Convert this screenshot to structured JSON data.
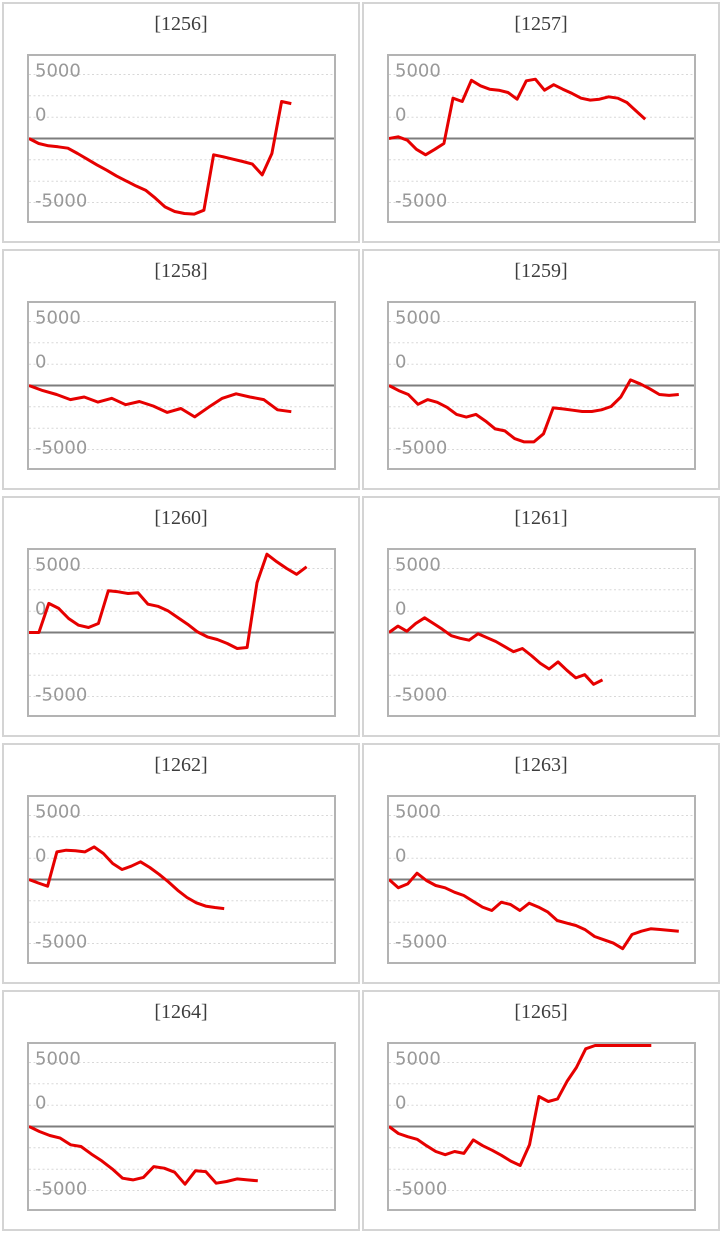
{
  "colors": {
    "background": "#ffffff",
    "series": "#e60000",
    "zero_line": "#7d7d7d",
    "gridline": "#d8d8d8",
    "plot_border": "#b3b3b3",
    "card_border": "#d4d4d4",
    "tick_label": "#999999",
    "title_text": "#3d3d3d"
  },
  "chart_data": {
    "type": "line",
    "layout": "grid of 10 sparkline-style slump graphs, 2 columns x 5 rows",
    "axis": {
      "tick_labels": [
        "5000",
        "0",
        "-5000"
      ],
      "ticks": [
        {
          "label": "5000",
          "value": 5000,
          "label_baseline_offset": 2
        },
        {
          "label": "0",
          "value": 0,
          "label_baseline_offset": -18
        },
        {
          "label": "-5000",
          "value": -5000,
          "label_baseline_offset": 4
        }
      ],
      "ylim": [
        -6450,
        6450
      ],
      "gridline_step": 1667,
      "grid": "dotted horizontal lines, solid darker line at 0",
      "legend": "none",
      "x_axis": "hidden (evenly spaced samples from left edge)"
    },
    "charts": [
      {
        "title": "[1256]",
        "machine": "1256",
        "line_end_fraction": 0.86,
        "values": [
          0,
          -390,
          -570,
          -650,
          -760,
          -1170,
          -1620,
          -2060,
          -2480,
          -2920,
          -3310,
          -3700,
          -4040,
          -4660,
          -5340,
          -5700,
          -5860,
          -5910,
          -5600,
          -1270,
          -1430,
          -1620,
          -1800,
          -2000,
          -2840,
          -1170,
          2890,
          2730
        ]
      },
      {
        "title": "[1257]",
        "machine": "1257",
        "line_end_fraction": 0.84,
        "values": [
          0,
          130,
          -130,
          -840,
          -1270,
          -840,
          -390,
          3150,
          2890,
          4550,
          4120,
          3850,
          3770,
          3590,
          3070,
          4510,
          4630,
          3770,
          4200,
          3850,
          3520,
          3150,
          3000,
          3070,
          3260,
          3150,
          2810,
          2160,
          1510
        ]
      },
      {
        "title": "[1258]",
        "machine": "1258",
        "line_end_fraction": 0.86,
        "values": [
          0,
          -400,
          -700,
          -1100,
          -900,
          -1300,
          -1000,
          -1500,
          -1250,
          -1600,
          -2100,
          -1800,
          -2450,
          -1700,
          -1000,
          -650,
          -900,
          -1100,
          -1900,
          -2050
        ]
      },
      {
        "title": "[1259]",
        "machine": "1259",
        "line_end_fraction": 0.95,
        "values": [
          0,
          -400,
          -700,
          -1470,
          -1100,
          -1310,
          -1700,
          -2260,
          -2470,
          -2260,
          -2780,
          -3390,
          -3550,
          -4150,
          -4410,
          -4410,
          -3770,
          -1750,
          -1830,
          -1930,
          -2030,
          -2030,
          -1900,
          -1640,
          -900,
          440,
          130,
          -260,
          -700,
          -770,
          -700
        ]
      },
      {
        "title": "[1260]",
        "machine": "1260",
        "line_end_fraction": 0.91,
        "values": [
          0,
          0,
          2270,
          1880,
          1090,
          570,
          390,
          700,
          3260,
          3180,
          3050,
          3100,
          2210,
          2050,
          1700,
          1170,
          650,
          50,
          -340,
          -550,
          -860,
          -1250,
          -1170,
          3880,
          6120,
          5520,
          5000,
          4550,
          5130
        ]
      },
      {
        "title": "[1261]",
        "machine": "1261",
        "line_end_fraction": 0.7,
        "values": [
          0,
          500,
          100,
          700,
          1150,
          700,
          250,
          -250,
          -450,
          -600,
          -100,
          -400,
          -700,
          -1100,
          -1500,
          -1250,
          -1800,
          -2400,
          -2850,
          -2300,
          -2950,
          -3550,
          -3300,
          -4050,
          -3700
        ]
      },
      {
        "title": "[1262]",
        "machine": "1262",
        "line_end_fraction": 0.64,
        "values": [
          0,
          -270,
          -520,
          2160,
          2290,
          2240,
          2160,
          2550,
          2030,
          1250,
          780,
          1040,
          1380,
          940,
          410,
          -190,
          -840,
          -1410,
          -1820,
          -2080,
          -2190,
          -2270
        ]
      },
      {
        "title": "[1263]",
        "machine": "1263",
        "line_end_fraction": 0.95,
        "values": [
          0,
          -650,
          -340,
          490,
          -80,
          -470,
          -650,
          -990,
          -1250,
          -1700,
          -2160,
          -2420,
          -1770,
          -1950,
          -2420,
          -1850,
          -2160,
          -2550,
          -3200,
          -3410,
          -3590,
          -3930,
          -4450,
          -4710,
          -4970,
          -5410,
          -4300,
          -4040,
          -3850,
          -3910,
          -3980,
          -4040
        ]
      },
      {
        "title": "[1264]",
        "machine": "1264",
        "line_end_fraction": 0.75,
        "values": [
          0,
          -390,
          -700,
          -910,
          -1430,
          -1560,
          -2160,
          -2690,
          -3310,
          -4040,
          -4170,
          -3980,
          -3130,
          -3260,
          -3570,
          -4510,
          -3460,
          -3520,
          -4430,
          -4300,
          -4090,
          -4170,
          -4240
        ]
      },
      {
        "title": "[1265]",
        "machine": "1265",
        "line_end_fraction": 0.86,
        "values": [
          0,
          -550,
          -800,
          -1000,
          -1500,
          -1950,
          -2200,
          -1950,
          -2100,
          -1050,
          -1500,
          -1850,
          -2250,
          -2700,
          -3050,
          -1430,
          2340,
          1950,
          2160,
          3520,
          4610,
          6070,
          7000,
          7000,
          7000,
          7000,
          7000,
          7000,
          7000
        ]
      }
    ]
  }
}
